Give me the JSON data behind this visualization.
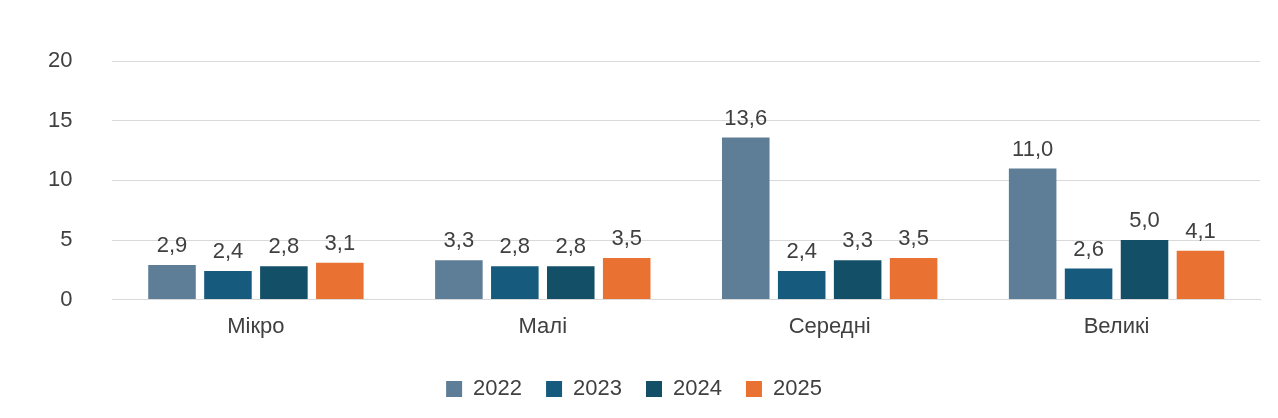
{
  "chart_data": {
    "type": "bar",
    "categories": [
      "Мікро",
      "Малі",
      "Середні",
      "Великі"
    ],
    "series": [
      {
        "name": "2022",
        "color": "#5e7d96",
        "values": [
          2.9,
          3.3,
          13.6,
          11.0
        ],
        "value_labels": [
          "2,9",
          "3,3",
          "13,6",
          "11,0"
        ]
      },
      {
        "name": "2023",
        "color": "#165b7e",
        "values": [
          2.4,
          2.8,
          2.4,
          2.6
        ],
        "value_labels": [
          "2,4",
          "2,8",
          "2,4",
          "2,6"
        ]
      },
      {
        "name": "2024",
        "color": "#134f67",
        "values": [
          2.8,
          2.8,
          3.3,
          5.0
        ],
        "value_labels": [
          "2,8",
          "2,8",
          "3,3",
          "5,0"
        ]
      },
      {
        "name": "2025",
        "color": "#e97132",
        "values": [
          3.1,
          3.5,
          3.5,
          4.1
        ],
        "value_labels": [
          "3,1",
          "3,5",
          "3,5",
          "4,1"
        ]
      }
    ],
    "ylim": [
      0,
      20
    ],
    "yticks": [
      0,
      5,
      10,
      15,
      20
    ],
    "grid": "y",
    "legend": "bottom"
  }
}
